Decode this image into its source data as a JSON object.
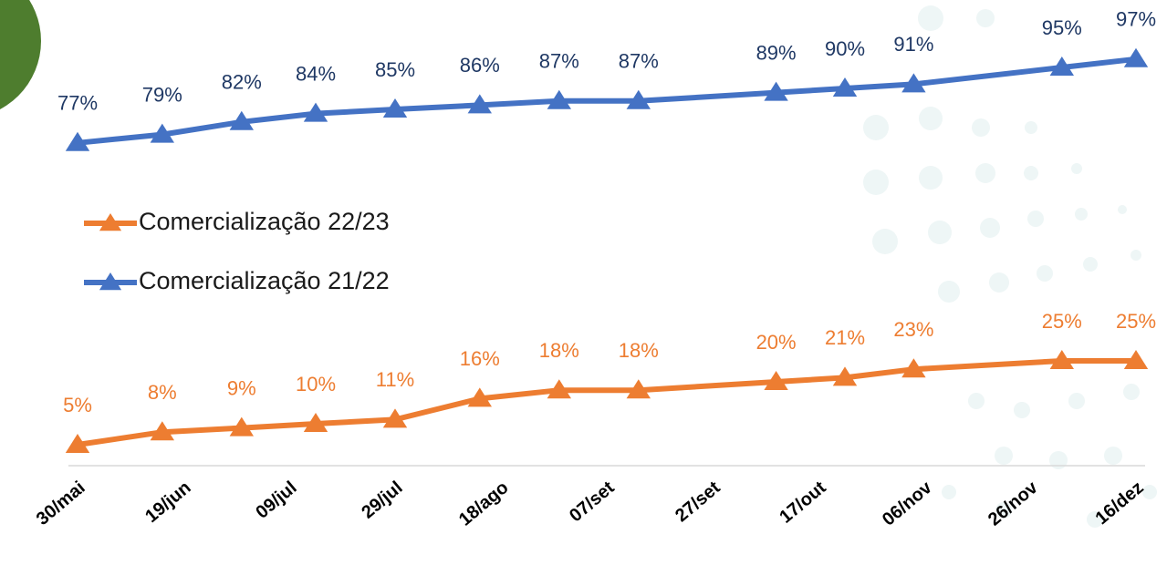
{
  "chart_data": {
    "type": "line",
    "x": [
      0,
      16,
      31,
      45,
      60,
      76,
      91,
      106,
      132,
      145,
      158,
      186,
      200
    ],
    "xlim": [
      0,
      200
    ],
    "xticks": [
      {
        "value": 0,
        "label": "30/mai"
      },
      {
        "value": 20,
        "label": "19/jun"
      },
      {
        "value": 40,
        "label": "09/jul"
      },
      {
        "value": 60,
        "label": "29/jul"
      },
      {
        "value": 80,
        "label": "18/ago"
      },
      {
        "value": 100,
        "label": "07/set"
      },
      {
        "value": 120,
        "label": "27/set"
      },
      {
        "value": 140,
        "label": "17/out"
      },
      {
        "value": 160,
        "label": "06/nov"
      },
      {
        "value": 180,
        "label": "26/nov"
      },
      {
        "value": 200,
        "label": "16/dez"
      }
    ],
    "ylim": [
      0,
      110
    ],
    "series": [
      {
        "name": "Comercialização 22/23",
        "color": "#ed7d31",
        "label_color": "#ed7d31",
        "values": [
          5,
          8,
          9,
          10,
          11,
          16,
          18,
          18,
          20,
          21,
          23,
          25,
          25
        ],
        "value_labels": [
          "5%",
          "8%",
          "9%",
          "10%",
          "11%",
          "16%",
          "18%",
          "18%",
          "20%",
          "21%",
          "23%",
          "25%",
          "25%"
        ]
      },
      {
        "name": "Comercialização 21/22",
        "color": "#4472c4",
        "label_color": "#1f3864",
        "values": [
          77,
          79,
          82,
          84,
          85,
          86,
          87,
          87,
          89,
          90,
          91,
          95,
          97
        ],
        "value_labels": [
          "77%",
          "79%",
          "82%",
          "84%",
          "85%",
          "86%",
          "87%",
          "87%",
          "89%",
          "90%",
          "91%",
          "95%",
          "97%"
        ]
      }
    ]
  }
}
